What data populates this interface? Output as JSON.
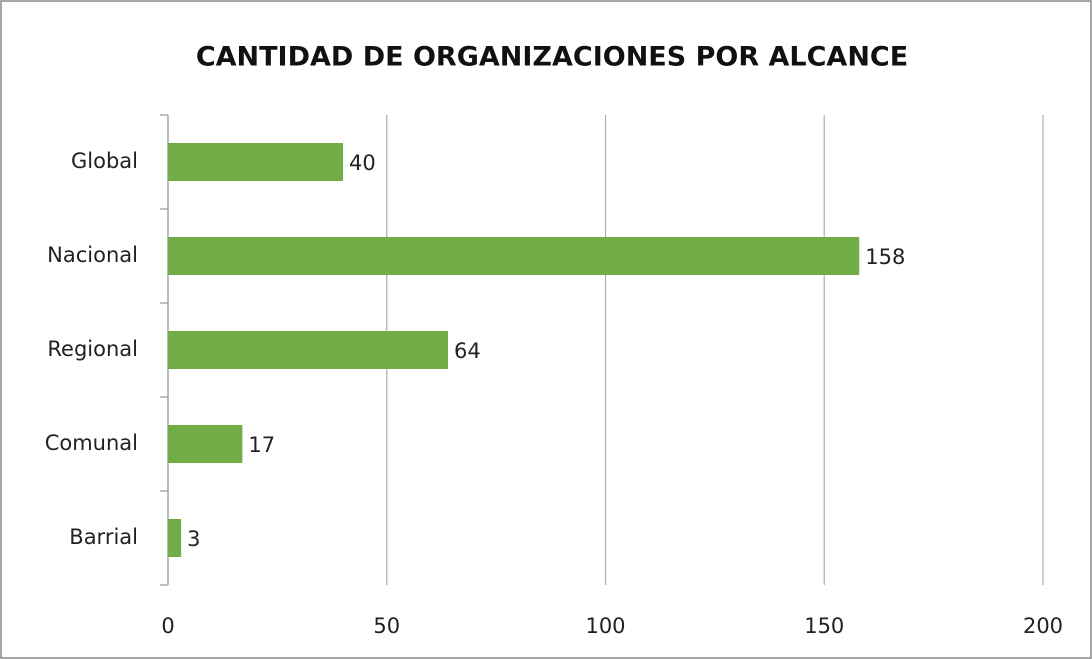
{
  "chart_data": {
    "type": "bar",
    "orientation": "horizontal",
    "title": "CANTIDAD DE ORGANIZACIONES POR ALCANCE",
    "categories": [
      "Global",
      "Nacional",
      "Regional",
      "Comunal",
      "Barrial"
    ],
    "values": [
      40,
      158,
      64,
      17,
      3
    ],
    "color": "#70ad47",
    "xlim": [
      0,
      200
    ],
    "xticks": [
      0,
      50,
      100,
      150,
      200
    ],
    "grid": true
  }
}
